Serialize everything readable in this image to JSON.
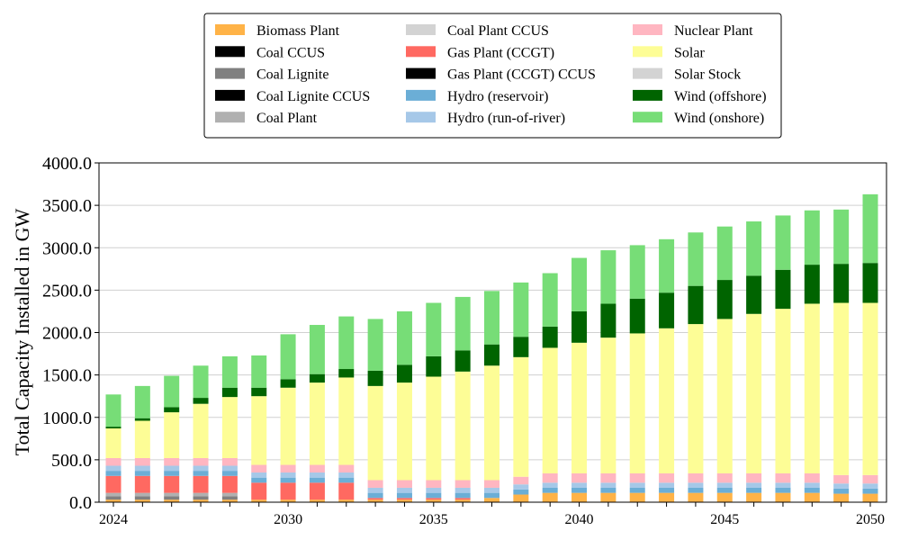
{
  "chart_data": {
    "type": "bar",
    "stacked": true,
    "ylabel": "Total Capacity Installed in GW",
    "xlabel": "",
    "ylim": [
      0,
      4000
    ],
    "yticks": [
      0,
      500,
      1000,
      1500,
      2000,
      2500,
      3000,
      3500,
      4000
    ],
    "ytick_labels": [
      "0.0",
      "500.0",
      "1000.0",
      "1500.0",
      "2000.0",
      "2500.0",
      "3000.0",
      "3500.0",
      "4000.0"
    ],
    "xtick_labels": [
      {
        "year": 2024,
        "label": "2024"
      },
      {
        "year": 2030,
        "label": "2030"
      },
      {
        "year": 2035,
        "label": "2035"
      },
      {
        "year": 2040,
        "label": "2040"
      },
      {
        "year": 2045,
        "label": "2045"
      },
      {
        "year": 2050,
        "label": "2050"
      }
    ],
    "grid": "horizontal",
    "legend_position": "top-center",
    "categories": [
      2024,
      2025,
      2026,
      2027,
      2028,
      2029,
      2030,
      2031,
      2032,
      2033,
      2034,
      2035,
      2036,
      2037,
      2038,
      2039,
      2040,
      2041,
      2042,
      2043,
      2044,
      2045,
      2046,
      2047,
      2048,
      2049,
      2050
    ],
    "series": [
      {
        "name": "Biomass Plant",
        "color": "#ffb347",
        "values": [
          30,
          30,
          30,
          30,
          30,
          30,
          30,
          30,
          30,
          30,
          30,
          30,
          30,
          50,
          90,
          110,
          110,
          110,
          110,
          110,
          110,
          110,
          110,
          110,
          110,
          100,
          100
        ]
      },
      {
        "name": "Coal CCUS",
        "color": "#000000",
        "values": [
          0,
          0,
          0,
          0,
          0,
          0,
          0,
          0,
          0,
          0,
          0,
          0,
          0,
          0,
          0,
          0,
          0,
          0,
          0,
          0,
          0,
          0,
          0,
          0,
          0,
          0,
          0
        ]
      },
      {
        "name": "Coal Lignite",
        "color": "#808080",
        "values": [
          40,
          40,
          40,
          40,
          40,
          0,
          0,
          0,
          0,
          0,
          0,
          0,
          0,
          0,
          0,
          0,
          0,
          0,
          0,
          0,
          0,
          0,
          0,
          0,
          0,
          0,
          0
        ]
      },
      {
        "name": "Coal Lignite CCUS",
        "color": "#000000",
        "values": [
          0,
          0,
          0,
          0,
          0,
          0,
          0,
          0,
          0,
          0,
          0,
          0,
          0,
          0,
          0,
          0,
          0,
          0,
          0,
          0,
          0,
          0,
          0,
          0,
          0,
          0,
          0
        ]
      },
      {
        "name": "Coal Plant",
        "color": "#b0b0b0",
        "values": [
          40,
          40,
          40,
          40,
          40,
          0,
          0,
          0,
          0,
          0,
          0,
          0,
          0,
          0,
          0,
          0,
          0,
          0,
          0,
          0,
          0,
          0,
          0,
          0,
          0,
          0,
          0
        ]
      },
      {
        "name": "Coal Plant CCUS",
        "color": "#d3d3d3",
        "values": [
          0,
          0,
          0,
          0,
          0,
          0,
          0,
          0,
          0,
          0,
          0,
          0,
          0,
          0,
          0,
          0,
          0,
          0,
          0,
          0,
          0,
          0,
          0,
          0,
          0,
          0,
          0
        ]
      },
      {
        "name": "Gas Plant (CCGT)",
        "color": "#ff6961",
        "values": [
          200,
          200,
          200,
          200,
          200,
          200,
          200,
          200,
          200,
          20,
          20,
          20,
          20,
          0,
          0,
          0,
          0,
          0,
          0,
          0,
          0,
          0,
          0,
          0,
          0,
          0,
          0
        ]
      },
      {
        "name": "Gas Plant (CCGT) CCUS",
        "color": "#000000",
        "values": [
          0,
          0,
          0,
          0,
          0,
          0,
          0,
          0,
          0,
          0,
          0,
          0,
          0,
          0,
          0,
          0,
          0,
          0,
          0,
          0,
          0,
          0,
          0,
          0,
          0,
          0,
          0
        ]
      },
      {
        "name": "Hydro (reservoir)",
        "color": "#6baed6",
        "values": [
          60,
          60,
          60,
          60,
          60,
          60,
          60,
          60,
          60,
          60,
          60,
          60,
          60,
          60,
          60,
          60,
          60,
          60,
          60,
          60,
          60,
          60,
          60,
          60,
          60,
          60,
          60
        ]
      },
      {
        "name": "Hydro (run-of-river)",
        "color": "#a6c8e8",
        "values": [
          60,
          60,
          60,
          60,
          60,
          60,
          60,
          60,
          60,
          60,
          60,
          60,
          60,
          60,
          60,
          60,
          60,
          60,
          60,
          60,
          60,
          60,
          60,
          60,
          60,
          60,
          60
        ]
      },
      {
        "name": "Nuclear Plant",
        "color": "#ffb6c1",
        "values": [
          90,
          90,
          90,
          90,
          90,
          90,
          90,
          90,
          90,
          90,
          90,
          90,
          90,
          90,
          90,
          110,
          110,
          110,
          110,
          110,
          110,
          110,
          110,
          110,
          110,
          100,
          100
        ]
      },
      {
        "name": "Solar",
        "color": "#fdfd96",
        "values": [
          350,
          440,
          540,
          640,
          720,
          810,
          910,
          970,
          1030,
          1110,
          1150,
          1220,
          1280,
          1350,
          1410,
          1480,
          1540,
          1600,
          1650,
          1710,
          1760,
          1820,
          1880,
          1940,
          2000,
          2030,
          2030
        ]
      },
      {
        "name": "Solar Stock",
        "color": "#d3d3d3",
        "values": [
          0,
          0,
          0,
          0,
          0,
          0,
          0,
          0,
          0,
          0,
          0,
          0,
          0,
          0,
          0,
          0,
          0,
          0,
          0,
          0,
          0,
          0,
          0,
          0,
          0,
          0,
          0
        ]
      },
      {
        "name": "Wind (offshore)",
        "color": "#006400",
        "values": [
          20,
          30,
          60,
          70,
          110,
          100,
          100,
          100,
          100,
          180,
          210,
          240,
          250,
          250,
          240,
          250,
          370,
          400,
          410,
          420,
          450,
          460,
          450,
          460,
          460,
          460,
          470
        ]
      },
      {
        "name": "Wind (onshore)",
        "color": "#77dd77",
        "values": [
          380,
          380,
          370,
          380,
          370,
          380,
          530,
          580,
          620,
          610,
          630,
          630,
          630,
          630,
          640,
          630,
          630,
          630,
          630,
          630,
          630,
          630,
          640,
          640,
          640,
          640,
          810
        ]
      }
    ]
  }
}
